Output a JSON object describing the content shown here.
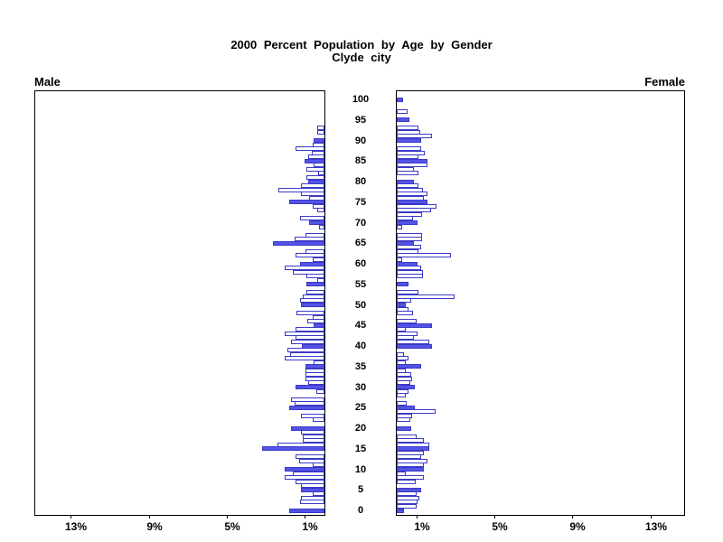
{
  "header": {
    "title_line1": "2000 Percent Population by Age by Gender",
    "title_line2": "Clyde city"
  },
  "panels": {
    "male_label": "Male",
    "female_label": "Female"
  },
  "x_axis": {
    "left_tick_labels": [
      "13%",
      "9%",
      "5%",
      "1%"
    ],
    "right_tick_labels": [
      "1%",
      "5%",
      "9%",
      "13%"
    ]
  },
  "chart_data": {
    "type": "bar",
    "subtype": "population-pyramid",
    "title": "2000 Percent Population by Age by Gender",
    "subtitle": "Clyde city",
    "unit": "percent of total population, single year of age",
    "legend": "none",
    "grid": false,
    "age_axis": {
      "min": 0,
      "max": 100,
      "tick_step": 5
    },
    "percent_axis": {
      "tick_percents": [
        1,
        5,
        9,
        13
      ],
      "max_percent": 14.8
    },
    "highlight_rule": "ages divisible by 5 drawn as filled blue bars; other ages white with blue outline",
    "colors": {
      "bar_fill": "#5353e6",
      "bar_outline": "#3a3ac8",
      "axis": "#000000"
    },
    "series": [
      {
        "name": "Male",
        "side": "left",
        "values_by_age": [
          1.81,
          0,
          1.23,
          1.19,
          0.62,
          1.19,
          1.19,
          1.47,
          2.04,
          1.62,
          2.05,
          0.62,
          1.31,
          1.47,
          0,
          3.19,
          2.39,
          1.11,
          1.11,
          1.19,
          1.73,
          0,
          0.62,
          1.19,
          0,
          1.81,
          1.54,
          1.7,
          0,
          0.42,
          1.5,
          0.85,
          0.97,
          0.97,
          0.97,
          0.97,
          0.57,
          2.05,
          1.77,
          1.9,
          1.16,
          1.73,
          1.5,
          2.04,
          1.47,
          0.54,
          0.87,
          0.62,
          1.45,
          0,
          1.19,
          1.27,
          1.11,
          0.93,
          0,
          0.93,
          0.39,
          0.93,
          1.62,
          2.04,
          1.23,
          0.62,
          1.47,
          0.96,
          0,
          2.65,
          1.54,
          0.96,
          0,
          0.28,
          0.8,
          1.23,
          0,
          0.39,
          0.62,
          1.81,
          0.8,
          1.2,
          2.35,
          1.2,
          0.85,
          0.92,
          0.31,
          0.92,
          0.54,
          1.0,
          0.85,
          0.66,
          1.47,
          0.62,
          0.54,
          0,
          0.35,
          0.35,
          0,
          0,
          0,
          0,
          0,
          0,
          0
        ]
      },
      {
        "name": "Female",
        "side": "right",
        "values_by_age": [
          0.39,
          1.0,
          1.05,
          1.16,
          1.0,
          1.27,
          0,
          0.96,
          1.39,
          0.46,
          1.39,
          1.39,
          1.57,
          1.23,
          1.39,
          1.67,
          1.67,
          1.39,
          1.0,
          0,
          0.74,
          0,
          0.69,
          0.77,
          1.98,
          0.93,
          0.49,
          0,
          0.46,
          0.62,
          0.93,
          0.69,
          0.8,
          0.74,
          0.46,
          1.27,
          0.46,
          0.62,
          0.39,
          0,
          1.82,
          1.67,
          0.9,
          1.05,
          0.46,
          1.82,
          1.0,
          0,
          0.85,
          0.62,
          0.46,
          0.74,
          2.98,
          1.1,
          0,
          0.6,
          0,
          1.36,
          1.36,
          1.25,
          1.06,
          0.29,
          2.79,
          1.13,
          1.25,
          0.86,
          1.28,
          1.28,
          0,
          0.3,
          1.06,
          0.82,
          1.31,
          1.74,
          2.05,
          1.56,
          1.4,
          1.56,
          1.33,
          1.1,
          0.86,
          0,
          1.13,
          0.86,
          1.59,
          1.59,
          1.1,
          1.44,
          1.25,
          0,
          1.25,
          1.79,
          1.2,
          1.13,
          0,
          0.63,
          0,
          0.57,
          0,
          0,
          0.32
        ]
      }
    ]
  }
}
